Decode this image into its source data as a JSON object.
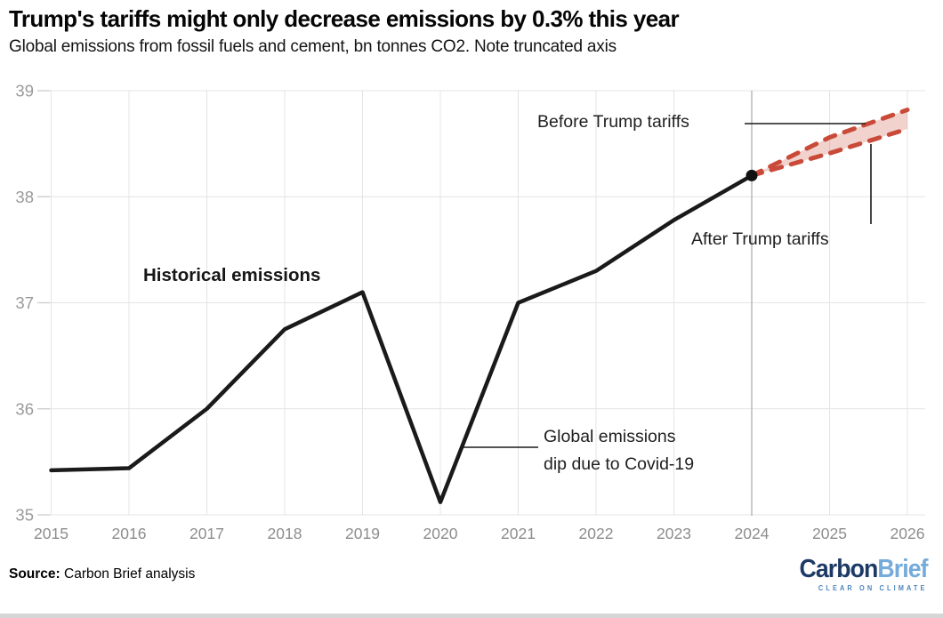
{
  "header": {
    "title": "Trump's tariffs might only decrease emissions by 0.3% this year",
    "subtitle": "Global emissions from fossil fuels and cement, bn tonnes CO2. Note truncated axis"
  },
  "chart_data": {
    "type": "line",
    "title": "Trump's tariffs might only decrease emissions by 0.3% this year",
    "subtitle": "Global emissions from fossil fuels and cement, bn tonnes CO2. Note truncated axis",
    "xlabel": "",
    "ylabel": "bn tonnes CO2",
    "xlim": [
      2015,
      2026
    ],
    "ylim": [
      35,
      39
    ],
    "xticks": [
      2015,
      2016,
      2017,
      2018,
      2019,
      2020,
      2021,
      2022,
      2023,
      2024,
      2025,
      2026
    ],
    "yticks": [
      35,
      36,
      37,
      38,
      39
    ],
    "grid": true,
    "truncated_axis": true,
    "series": [
      {
        "name": "Historical emissions",
        "x": [
          2015,
          2016,
          2017,
          2018,
          2019,
          2020,
          2021,
          2022,
          2023,
          2024
        ],
        "values": [
          35.42,
          35.44,
          36.0,
          36.75,
          37.1,
          35.12,
          37.0,
          37.3,
          37.78,
          38.2
        ],
        "color": "#1a1a1a",
        "style": "solid",
        "width": 4.5
      },
      {
        "name": "Before Trump tariffs",
        "x": [
          2024,
          2025,
          2026
        ],
        "values": [
          38.2,
          38.56,
          38.82
        ],
        "color": "#c94a38",
        "style": "dashed",
        "width": 5
      },
      {
        "name": "After Trump tariffs",
        "x": [
          2024,
          2025,
          2026
        ],
        "values": [
          38.2,
          38.41,
          38.64
        ],
        "color": "#c94a38",
        "style": "dashed",
        "width": 5
      }
    ],
    "band": {
      "x": [
        2024,
        2025,
        2026
      ],
      "upper": [
        38.2,
        38.56,
        38.82
      ],
      "lower": [
        38.2,
        38.41,
        38.64
      ],
      "fill": "#c94a38",
      "opacity": 0.25
    },
    "marker": {
      "x": 2024,
      "value": 38.2,
      "color": "#111111"
    },
    "vline": {
      "x": 2024,
      "color": "#b3b3b3"
    },
    "colors": {
      "gridline": "#e4e4e4",
      "tick": "#cfcfcf",
      "y_label": "#9a9a9a",
      "x_label": "#8d8d8d",
      "connector": "#1a1a1a"
    }
  },
  "annotations": {
    "historical": "Historical emissions",
    "before": "Before Trump tariffs",
    "after": "After Trump tariffs",
    "covid_line1": "Global emissions",
    "covid_line2": "dip due to Covid-19"
  },
  "footer": {
    "source_label": "Source:",
    "source_text": "Carbon Brief analysis",
    "logo": {
      "part1": "Carbon",
      "part2": "Brief",
      "tagline": "CLEAR ON CLIMATE"
    }
  }
}
